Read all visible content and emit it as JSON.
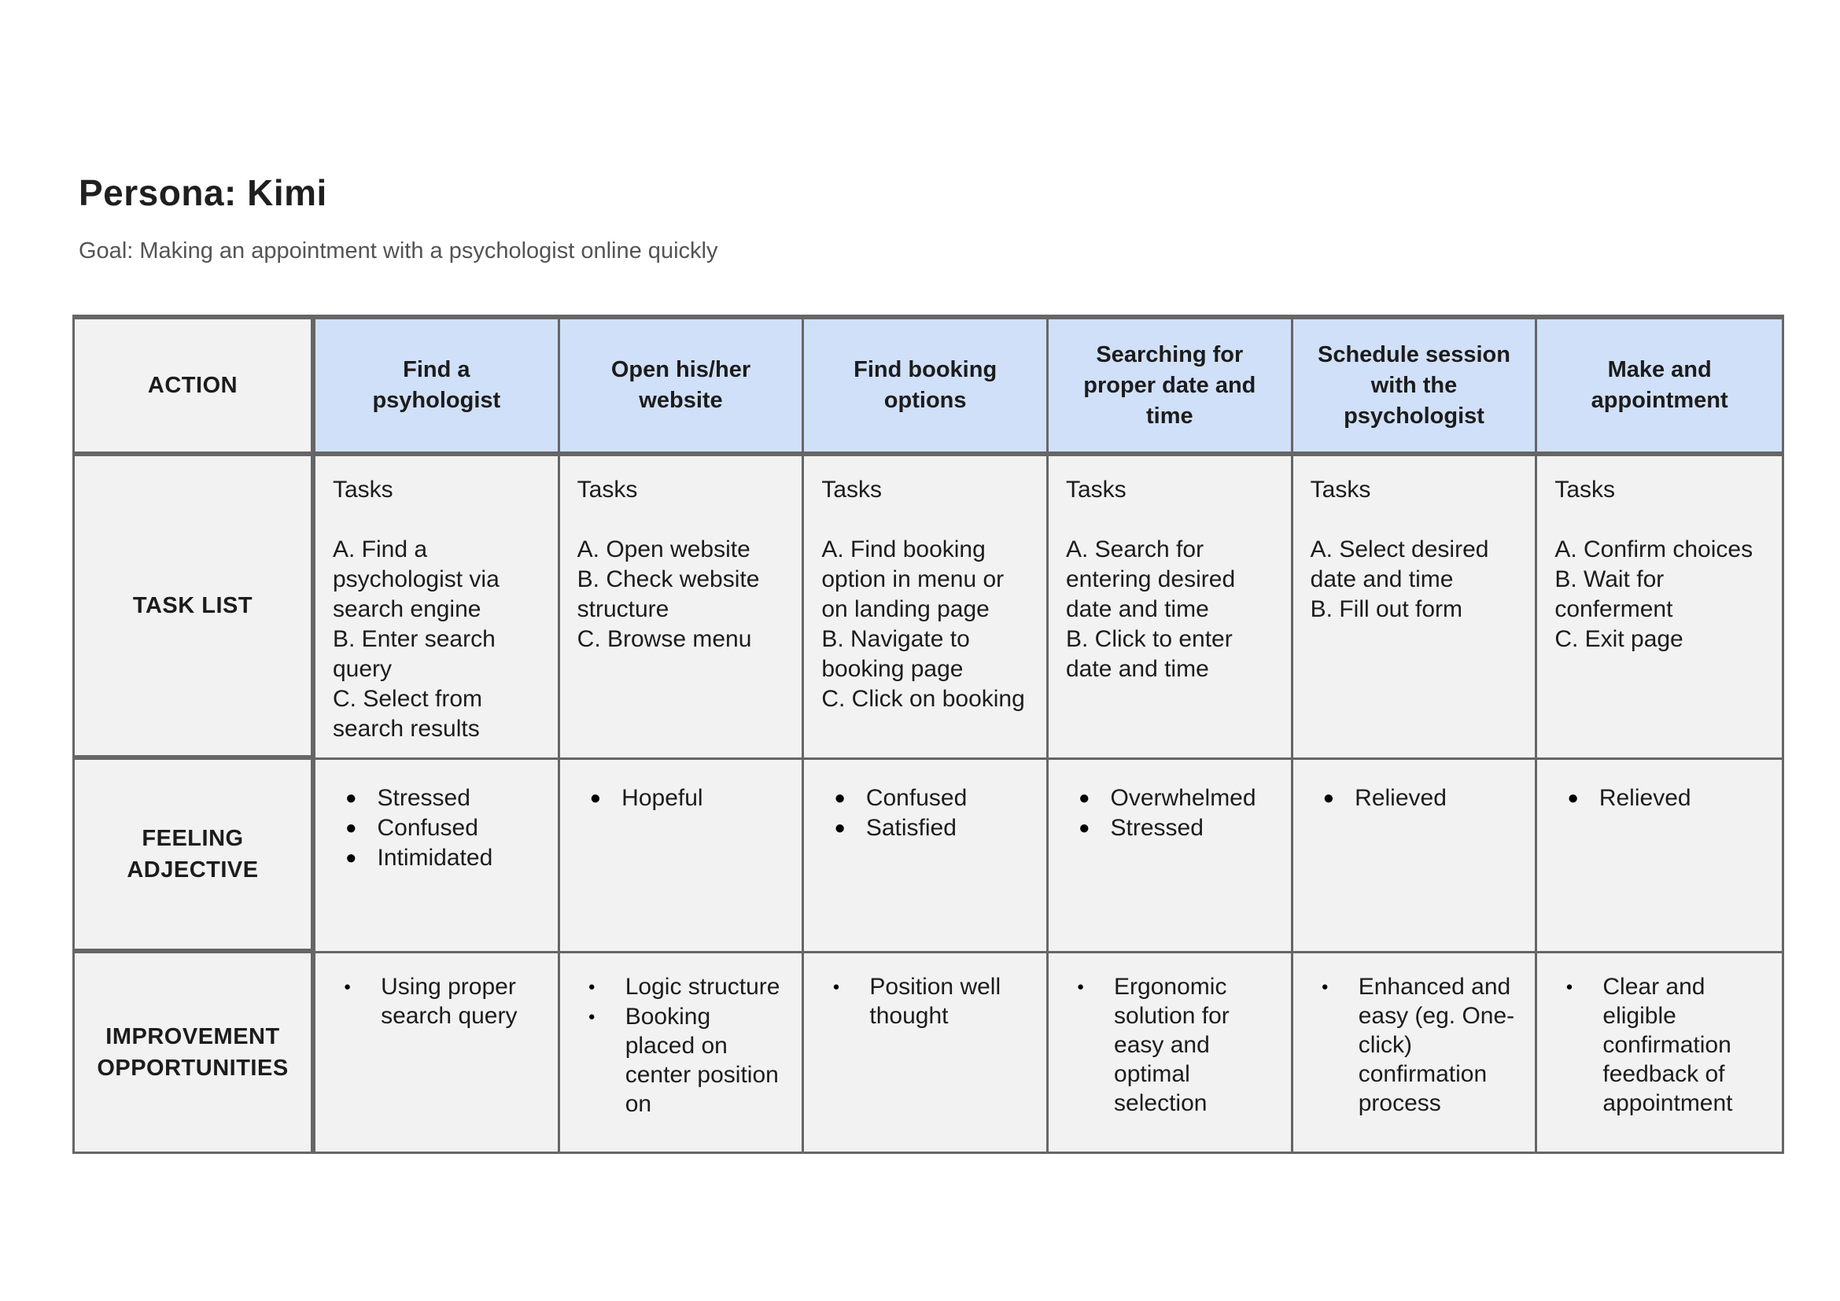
{
  "page": {
    "title": "Persona: Kimi",
    "goal": "Goal: Making an appointment with a psychologist online quickly"
  },
  "icons": {
    "bullet": "●"
  },
  "colors": {
    "header_bg": "#d0e0f8",
    "cell_bg": "#f2f2f2",
    "border": "#666666",
    "subtitle_text": "#545454"
  },
  "table": {
    "row_labels": {
      "action": "ACTION",
      "task_list": "TASK LIST",
      "feeling_adjective": "FEELING ADJECTIVE",
      "improvement_opportunities": "IMPROVEMENT OPPORTUNITIES"
    },
    "tasks_heading": "Tasks",
    "columns": [
      {
        "action": "Find a psyhologist",
        "tasks": [
          "A. Find a psychologist via search engine",
          "B. Enter search query",
          "C. Select from search results"
        ],
        "feelings": [
          "Stressed",
          "Confused",
          "Intimidated"
        ],
        "improvements": [
          "Using proper search query"
        ]
      },
      {
        "action": "Open his/her website",
        "tasks": [
          "A. Open website",
          "B. Check website structure",
          "C. Browse menu"
        ],
        "feelings": [
          "Hopeful"
        ],
        "improvements": [
          "Logic structure",
          "Booking placed on center position on"
        ]
      },
      {
        "action": "Find booking options",
        "tasks": [
          "A. Find booking option in menu or on landing page",
          "B. Navigate to booking page",
          "C. Click on booking"
        ],
        "feelings": [
          "Confused",
          "Satisfied"
        ],
        "improvements": [
          "Position well thought"
        ]
      },
      {
        "action": "Searching for proper date and time",
        "tasks": [
          "A. Search for entering desired date and time",
          "B. Click to enter date and time"
        ],
        "feelings": [
          "Overwhelmed",
          "Stressed"
        ],
        "improvements": [
          "Ergonomic solution for easy and optimal selection"
        ]
      },
      {
        "action": "Schedule session with the psychologist",
        "tasks": [
          "A. Select desired date and time",
          "B. Fill out form"
        ],
        "feelings": [
          "Relieved"
        ],
        "improvements": [
          "Enhanced and easy (eg. One-click) confirmation process"
        ]
      },
      {
        "action": "Make and appointment",
        "tasks": [
          "A. Confirm choices",
          "B. Wait for conferment",
          "C. Exit page"
        ],
        "feelings": [
          "Relieved"
        ],
        "improvements": [
          "Clear and eligible confirmation feedback of appointment"
        ]
      }
    ]
  }
}
